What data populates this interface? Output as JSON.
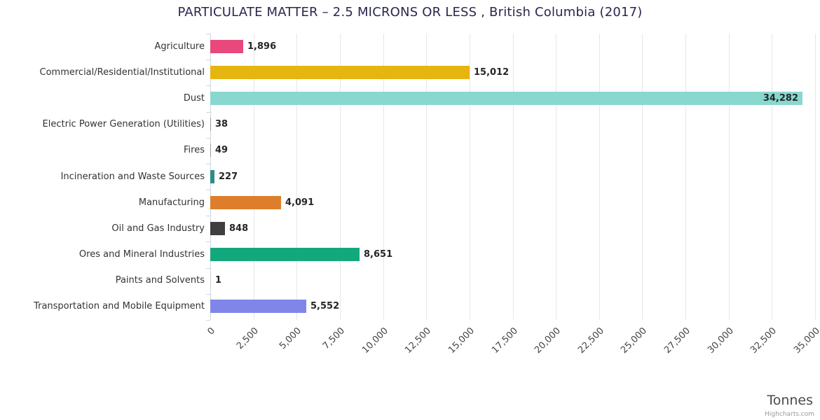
{
  "chart_data": {
    "type": "bar",
    "title": "PARTICULATE MATTER – 2.5 MICRONS OR LESS , British Columbia (2017)",
    "xlabel": "Tonnes",
    "ylabel": "",
    "xlim": [
      0,
      35000
    ],
    "grid": true,
    "legend": "none",
    "categories": [
      "Agriculture",
      "Commercial/Residential/Institutional",
      "Dust",
      "Electric Power Generation (Utilities)",
      "Fires",
      "Incineration and Waste Sources",
      "Manufacturing",
      "Oil and Gas Industry",
      "Ores and Mineral Industries",
      "Paints and Solvents",
      "Transportation and Mobile Equipment"
    ],
    "values": [
      1896,
      15012,
      34282,
      38,
      49,
      227,
      4091,
      848,
      8651,
      1,
      5552
    ],
    "value_labels": [
      "1,896",
      "15,012",
      "34,282",
      "38",
      "49",
      "227",
      "4,091",
      "848",
      "8,651",
      "1",
      "5,552"
    ],
    "colors": [
      "#e8487c",
      "#e6b510",
      "#89d8d0",
      "#9b9b9b",
      "#9b9b9b",
      "#2e8b8a",
      "#de7e2b",
      "#3f3f3f",
      "#13a87c",
      "#cccccc",
      "#8085e9"
    ],
    "x_ticks": [
      0,
      2500,
      5000,
      7500,
      10000,
      12500,
      15000,
      17500,
      20000,
      22500,
      25000,
      27500,
      30000,
      32500,
      35000
    ],
    "x_tick_labels": [
      "0",
      "2,500",
      "5,000",
      "7,500",
      "10,000",
      "12,500",
      "15,000",
      "17,500",
      "20,000",
      "22,500",
      "25,000",
      "27,500",
      "30,000",
      "32,500",
      "35,000"
    ]
  },
  "credits": "Highcharts.com"
}
